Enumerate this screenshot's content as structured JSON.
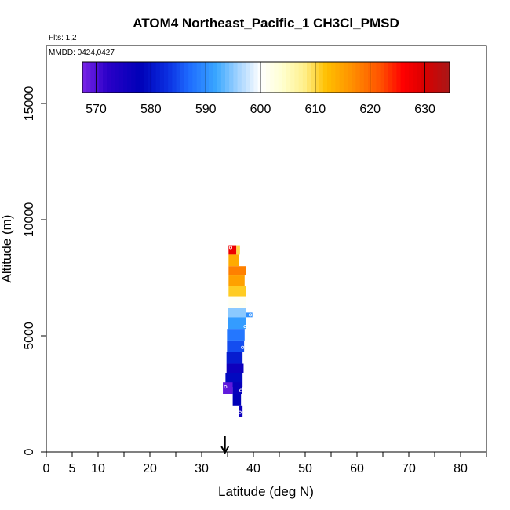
{
  "chart_data": {
    "type": "heatmap",
    "title": "ATOM4 Northeast_Pacific_1 CH3Cl_PMSD",
    "flights_label": "Flts: 1,2",
    "dates_label": "MMDD: 0424,0427",
    "xlabel": "Latitude (deg N)",
    "ylabel": "Altitude (m)",
    "xlim": [
      0,
      85
    ],
    "ylim": [
      0,
      17500
    ],
    "x_ticks": [
      0,
      5,
      10,
      20,
      30,
      40,
      50,
      60,
      70,
      80
    ],
    "x_minor_ticks": [
      15,
      25,
      35,
      45,
      55,
      65,
      75,
      85
    ],
    "y_ticks": [
      0,
      5000,
      10000,
      15000
    ],
    "arrow_latitude": 34.5,
    "colorbar": {
      "min": 567.5,
      "max": 634.5,
      "ticks": [
        570,
        580,
        590,
        600,
        610,
        620,
        630
      ],
      "stops": [
        {
          "value": 567.5,
          "color": "#7b25e6"
        },
        {
          "value": 572,
          "color": "#2b00c8"
        },
        {
          "value": 578,
          "color": "#0000b8"
        },
        {
          "value": 583,
          "color": "#0a2ee0"
        },
        {
          "value": 587,
          "color": "#1e6bff"
        },
        {
          "value": 592,
          "color": "#3aa8ff"
        },
        {
          "value": 596,
          "color": "#a6d4ff"
        },
        {
          "value": 600,
          "color": "#ffffff"
        },
        {
          "value": 604,
          "color": "#ffffd0"
        },
        {
          "value": 608,
          "color": "#ffef8a"
        },
        {
          "value": 612,
          "color": "#ffc000"
        },
        {
          "value": 617,
          "color": "#ff8c00"
        },
        {
          "value": 622,
          "color": "#ff5000"
        },
        {
          "value": 626,
          "color": "#ff0000"
        },
        {
          "value": 630,
          "color": "#d80000"
        },
        {
          "value": 634.5,
          "color": "#a81818"
        }
      ]
    },
    "cells": [
      {
        "lat0": 35.2,
        "lat1": 36.7,
        "alt0": 8500,
        "alt1": 8900,
        "value": 628
      },
      {
        "lat0": 36.7,
        "lat1": 37.4,
        "alt0": 8500,
        "alt1": 8900,
        "value": 610
      },
      {
        "lat0": 35.2,
        "lat1": 37.2,
        "alt0": 8000,
        "alt1": 8500,
        "value": 614
      },
      {
        "lat0": 35.2,
        "lat1": 38.6,
        "alt0": 7600,
        "alt1": 8000,
        "value": 618
      },
      {
        "lat0": 35.2,
        "lat1": 38.3,
        "alt0": 7150,
        "alt1": 7600,
        "value": 615
      },
      {
        "lat0": 35.2,
        "lat1": 38.5,
        "alt0": 6700,
        "alt1": 7150,
        "value": 611
      },
      {
        "lat0": 35.2,
        "lat1": 38.5,
        "alt0": 6200,
        "alt1": 6700,
        "value": 601
      },
      {
        "lat0": 35.0,
        "lat1": 38.5,
        "alt0": 5800,
        "alt1": 6200,
        "value": 595
      },
      {
        "lat0": 35.0,
        "lat1": 38.5,
        "alt0": 5300,
        "alt1": 5800,
        "value": 591
      },
      {
        "lat0": 38.5,
        "lat1": 39.8,
        "alt0": 5800,
        "alt1": 6000,
        "value": 590
      },
      {
        "lat0": 34.9,
        "lat1": 38.3,
        "alt0": 4800,
        "alt1": 5300,
        "value": 588
      },
      {
        "lat0": 34.9,
        "lat1": 38.2,
        "alt0": 4300,
        "alt1": 4800,
        "value": 585
      },
      {
        "lat0": 34.8,
        "lat1": 37.9,
        "alt0": 3800,
        "alt1": 4300,
        "value": 581
      },
      {
        "lat0": 34.8,
        "lat1": 38.1,
        "alt0": 3400,
        "alt1": 3800,
        "value": 576
      },
      {
        "lat0": 34.6,
        "lat1": 37.9,
        "alt0": 2800,
        "alt1": 3400,
        "value": 579
      },
      {
        "lat0": 34.1,
        "lat1": 36.0,
        "alt0": 2500,
        "alt1": 3000,
        "value": 569
      },
      {
        "lat0": 36.0,
        "lat1": 37.8,
        "alt0": 2500,
        "alt1": 3000,
        "value": 577
      },
      {
        "lat0": 36.0,
        "lat1": 37.6,
        "alt0": 2000,
        "alt1": 2500,
        "value": 578
      },
      {
        "lat0": 37.2,
        "lat1": 37.9,
        "alt0": 1500,
        "alt1": 2000,
        "value": 576
      }
    ],
    "points": [
      {
        "lat": 35.6,
        "alt": 8800
      },
      {
        "lat": 38.4,
        "alt": 5400
      },
      {
        "lat": 39.4,
        "alt": 5900
      },
      {
        "lat": 37.9,
        "alt": 4500
      },
      {
        "lat": 37.6,
        "alt": 2650
      },
      {
        "lat": 34.6,
        "alt": 2800
      },
      {
        "lat": 37.4,
        "alt": 1700
      }
    ]
  }
}
